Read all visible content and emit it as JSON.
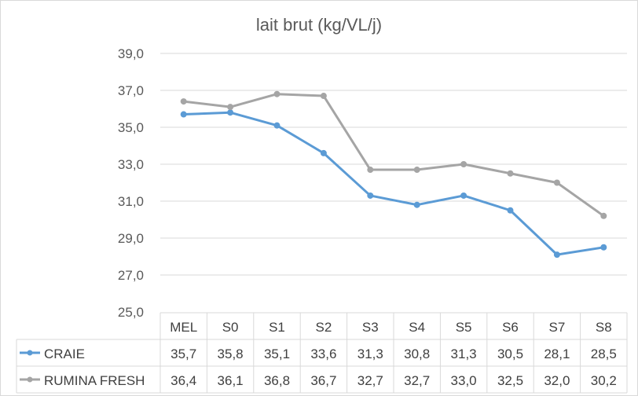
{
  "chart_data": {
    "type": "line",
    "title": "lait brut (kg/VL/j)",
    "xlabel": "",
    "ylabel": "",
    "categories": [
      "MEL",
      "S0",
      "S1",
      "S2",
      "S3",
      "S4",
      "S5",
      "S6",
      "S7",
      "S8"
    ],
    "ylim": [
      25,
      39
    ],
    "yticks": [
      25,
      27,
      29,
      31,
      33,
      35,
      37,
      39
    ],
    "ytick_labels": [
      "25,0",
      "27,0",
      "29,0",
      "31,0",
      "33,0",
      "35,0",
      "37,0",
      "39,0"
    ],
    "grid": true,
    "legend": "data-table",
    "series": [
      {
        "name": "CRAIE",
        "color": "#5b9bd5",
        "values": [
          35.7,
          35.8,
          35.1,
          33.6,
          31.3,
          30.8,
          31.3,
          30.5,
          28.1,
          28.5
        ],
        "labels": [
          "35,7",
          "35,8",
          "35,1",
          "33,6",
          "31,3",
          "30,8",
          "31,3",
          "30,5",
          "28,1",
          "28,5"
        ]
      },
      {
        "name": "RUMINA FRESH",
        "color": "#a5a5a5",
        "values": [
          36.4,
          36.1,
          36.8,
          36.7,
          32.7,
          32.7,
          33.0,
          32.5,
          32.0,
          30.2
        ],
        "labels": [
          "36,4",
          "36,1",
          "36,8",
          "36,7",
          "32,7",
          "32,7",
          "33,0",
          "32,5",
          "32,0",
          "30,2"
        ]
      }
    ]
  }
}
